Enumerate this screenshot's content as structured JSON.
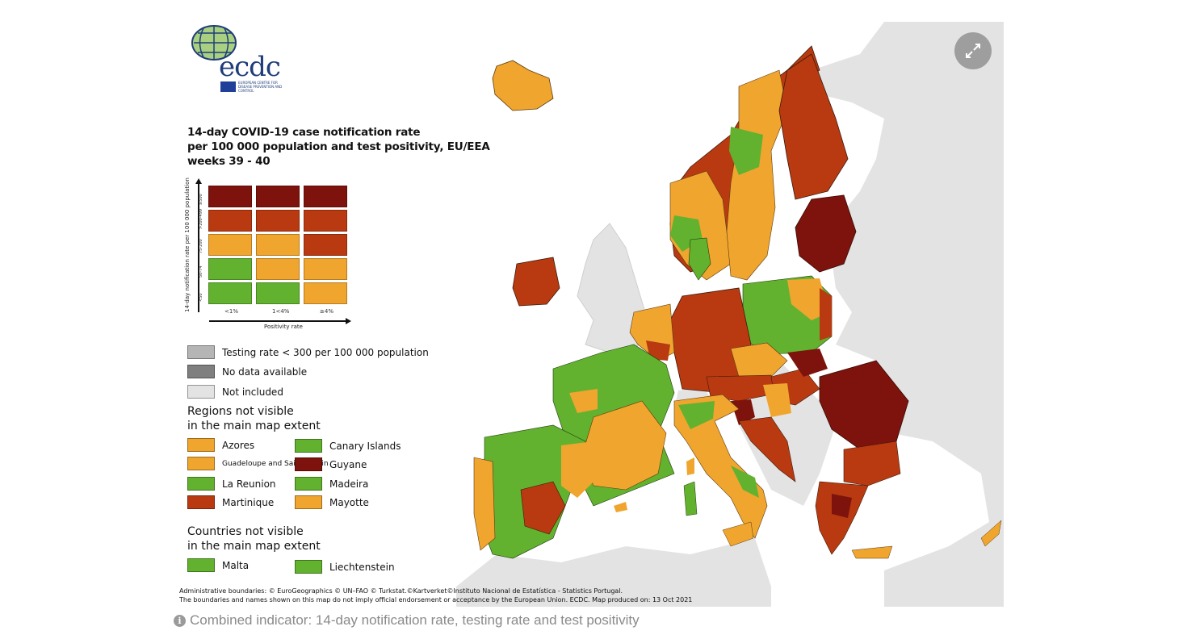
{
  "logo": {
    "text": "ecdc",
    "subtitle": "EUROPEAN CENTRE FOR DISEASE PREVENTION AND CONTROL"
  },
  "title": {
    "line1": "14-day COVID-19 case notification rate",
    "line2": "per 100 000 population and test positivity, EU/EEA",
    "line3": "weeks 39 - 40"
  },
  "colors": {
    "dark_red": "#7d130c",
    "red": "#b93a11",
    "orange": "#f0a52e",
    "green": "#62b22f",
    "testing_low": "#b5b5b5",
    "no_data": "#7f7f7f",
    "not_included": "#e3e3e3"
  },
  "matrix": {
    "y_axis_title": "14-day notification rate per 100 000 population",
    "x_axis_title": "Positivity rate",
    "columns": [
      "<1%",
      "1<4%",
      "≥4%"
    ],
    "rows": [
      {
        "label": "≥500",
        "cells": [
          "dark_red",
          "dark_red",
          "dark_red"
        ]
      },
      {
        "label": ">200-499",
        "cells": [
          "red",
          "red",
          "red"
        ]
      },
      {
        "label": "75-200",
        "cells": [
          "orange",
          "orange",
          "red"
        ]
      },
      {
        "label": "50-74",
        "cells": [
          "green",
          "orange",
          "orange"
        ]
      },
      {
        "label": "<50",
        "cells": [
          "green",
          "green",
          "orange"
        ]
      }
    ]
  },
  "legend": {
    "testing_low": "Testing rate < 300 per 100 000 population",
    "no_data": "No data available",
    "not_included": "Not included"
  },
  "regions_heading_1": "Regions not visible",
  "regions_heading_2": "in the main map extent",
  "regions": [
    {
      "name": "Azores",
      "color": "orange"
    },
    {
      "name": "Canary Islands",
      "color": "green"
    },
    {
      "name": "Guadeloupe and Saint Martin",
      "color": "orange"
    },
    {
      "name": "Guyane",
      "color": "dark_red"
    },
    {
      "name": "La Reunion",
      "color": "green"
    },
    {
      "name": "Madeira",
      "color": "green"
    },
    {
      "name": "Martinique",
      "color": "red"
    },
    {
      "name": "Mayotte",
      "color": "orange"
    }
  ],
  "countries_heading_1": "Countries not visible",
  "countries_heading_2": "in the main map extent",
  "countries": [
    {
      "name": "Malta",
      "color": "green"
    },
    {
      "name": "Liechtenstein",
      "color": "green"
    }
  ],
  "credits": {
    "line1": "Administrative boundaries: © EuroGeographics © UN–FAO © Turkstat.©Kartverket©Instituto Nacional de Estatística - Statistics Portugal.",
    "line2": "The boundaries and names shown on this map do not imply official endorsement or acceptance by the European Union. ECDC. Map produced on: 13 Oct 2021"
  },
  "caption": {
    "icon": "info-icon",
    "text": "Combined indicator: 14-day notification rate, testing rate and test positivity"
  },
  "controls": {
    "expand_icon": "expand-arrows-icon"
  }
}
